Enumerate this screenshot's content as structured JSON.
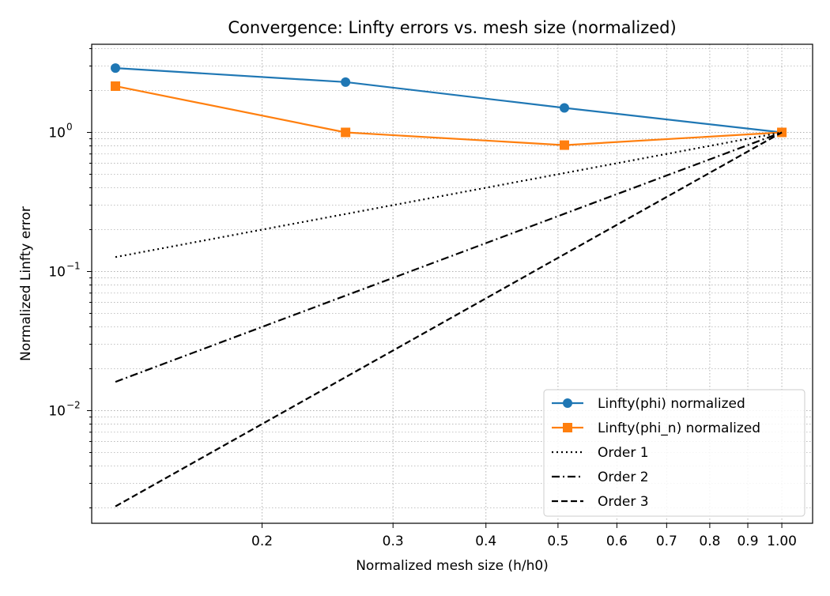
{
  "chart_data": {
    "type": "line",
    "title": "Convergence: Linfty errors vs. mesh size (normalized)",
    "xlabel": "Normalized mesh size (h/h0)",
    "ylabel": "Normalized Linfty error",
    "xscale": "log",
    "yscale": "log",
    "xlim": [
      0.118,
      1.1
    ],
    "ylim": [
      0.00155,
      4.3
    ],
    "x_ticks": [
      {
        "value": 0.2,
        "label": "0.2"
      },
      {
        "value": 0.3,
        "label": "0.3"
      },
      {
        "value": 0.4,
        "label": "0.4"
      },
      {
        "value": 0.5,
        "label": "0.5"
      },
      {
        "value": 0.6,
        "label": "0.6"
      },
      {
        "value": 0.7,
        "label": "0.7"
      },
      {
        "value": 0.8,
        "label": "0.8"
      },
      {
        "value": 0.9,
        "label": "0.9"
      },
      {
        "value": 1.0,
        "label": "1.00"
      }
    ],
    "y_ticks": [
      {
        "value": 0.01,
        "base": "10",
        "exp": "−2"
      },
      {
        "value": 0.1,
        "base": "10",
        "exp": "−1"
      },
      {
        "value": 1,
        "base": "10",
        "exp": "0"
      }
    ],
    "grid": true,
    "legend_position": "lower-right",
    "series": [
      {
        "name": "Linfty(phi) normalized",
        "color": "#1f77b4",
        "marker": "circle",
        "linestyle": "solid",
        "x": [
          0.127,
          0.259,
          0.51,
          1.0
        ],
        "y": [
          2.9,
          2.3,
          1.5,
          1.0
        ]
      },
      {
        "name": "Linfty(phi_n) normalized",
        "color": "#ff7f0e",
        "marker": "square",
        "linestyle": "solid",
        "x": [
          0.127,
          0.259,
          0.51,
          1.0
        ],
        "y": [
          2.15,
          1.0,
          0.81,
          1.0
        ]
      },
      {
        "name": "Order 1",
        "color": "#000000",
        "marker": "none",
        "linestyle": "dotted",
        "x": [
          0.127,
          0.259,
          0.51,
          1.0
        ],
        "y": [
          0.127,
          0.259,
          0.51,
          1.0
        ]
      },
      {
        "name": "Order 2",
        "color": "#000000",
        "marker": "none",
        "linestyle": "dashdot",
        "x": [
          0.127,
          0.259,
          0.51,
          1.0
        ],
        "y": [
          0.0161,
          0.0671,
          0.26,
          1.0
        ]
      },
      {
        "name": "Order 3",
        "color": "#000000",
        "marker": "none",
        "linestyle": "dashed",
        "x": [
          0.127,
          0.259,
          0.51,
          1.0
        ],
        "y": [
          0.00205,
          0.0174,
          0.133,
          1.0
        ]
      }
    ]
  }
}
